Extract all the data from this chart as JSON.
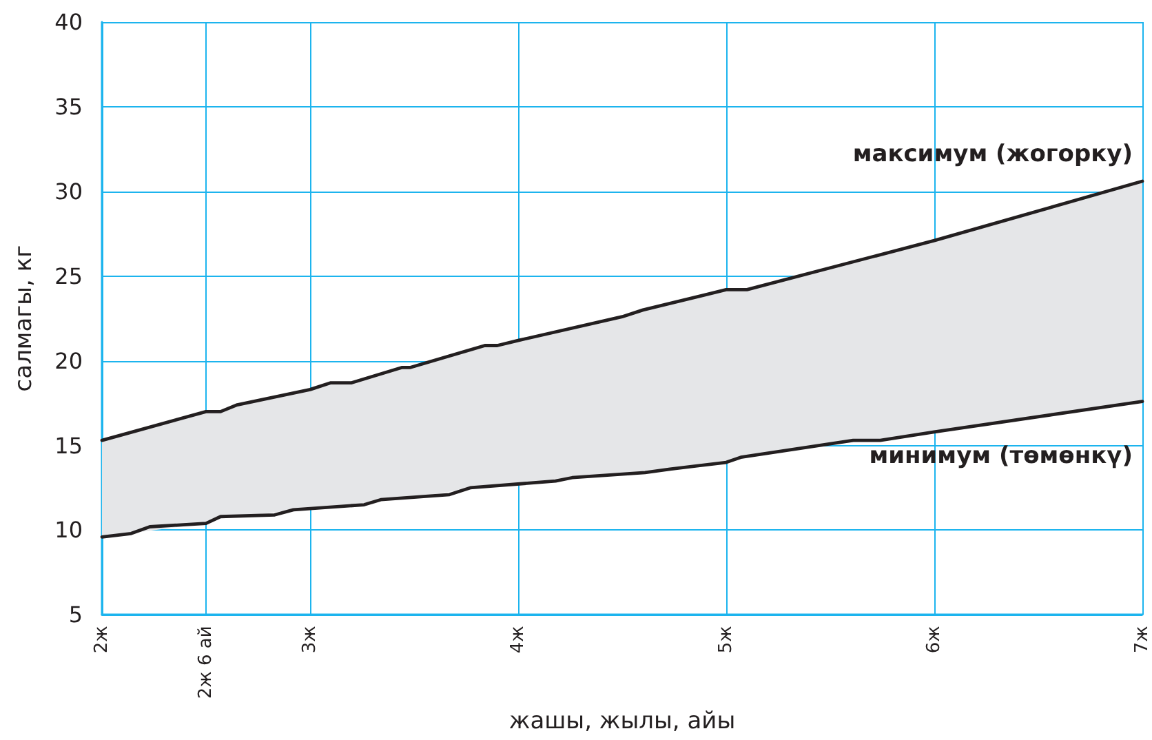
{
  "chart_data": {
    "type": "line",
    "xlabel": "жашы, жылы, айы",
    "ylabel": "салмагы, кг",
    "xlim": [
      2,
      7
    ],
    "xticks": [
      {
        "value": 2,
        "label": "2ж"
      },
      {
        "value": 2.5,
        "label": "2ж 6 ай"
      },
      {
        "value": 3,
        "label": "3ж"
      },
      {
        "value": 4,
        "label": "4ж"
      },
      {
        "value": 5,
        "label": "5ж"
      },
      {
        "value": 6,
        "label": "6ж"
      },
      {
        "value": 7,
        "label": "7ж"
      }
    ],
    "ylim": [
      5,
      40
    ],
    "yticks": [
      5,
      10,
      15,
      20,
      25,
      30,
      35,
      40
    ],
    "grid": true,
    "marker": "none",
    "line_style": "solid",
    "legend": false,
    "series": [
      {
        "name": "максимум (жогорку)",
        "color": "#231f20",
        "x": [
          2,
          2.5,
          2.57,
          2.65,
          3,
          3.1,
          3.2,
          3.44,
          3.48,
          3.84,
          3.9,
          4,
          4.5,
          4.6,
          5,
          5.1,
          6,
          7
        ],
        "values": [
          15.3,
          17,
          17,
          17.4,
          18.3,
          18.7,
          18.7,
          19.6,
          19.6,
          20.9,
          20.9,
          21.2,
          22.6,
          23,
          24.2,
          24.2,
          27.1,
          30.6
        ],
        "upper": [
          15.3,
          17,
          17,
          17.4,
          18.3,
          18.7,
          18.7,
          19.6,
          19.6,
          20.9,
          20.9,
          21.2,
          22.6,
          23,
          24.2,
          24.2,
          27.1,
          30.6
        ],
        "lower": [
          9.6,
          10.4,
          10.8,
          10.8,
          11.3,
          11.4,
          11.5,
          11.9,
          11.9,
          12.6,
          12.6,
          12.7,
          13.3,
          13.4,
          14,
          14.4,
          15.8,
          17.6
        ]
      },
      {
        "name": "минимум (төмөнкү)",
        "color": "#231f20",
        "x": [
          2,
          2.14,
          2.23,
          2.5,
          2.57,
          2.83,
          2.92,
          3.26,
          3.34,
          3.67,
          3.77,
          4.18,
          4.26,
          4.61,
          4.73,
          5,
          5.07,
          5.61,
          5.74,
          6,
          7
        ],
        "values": [
          9.6,
          9.8,
          10.2,
          10.4,
          10.8,
          10.9,
          11.2,
          11.5,
          11.8,
          12.1,
          12.5,
          12.9,
          13.1,
          13.4,
          13.6,
          14,
          14.3,
          15.3,
          15.3,
          15.8,
          17.6
        ]
      }
    ]
  }
}
